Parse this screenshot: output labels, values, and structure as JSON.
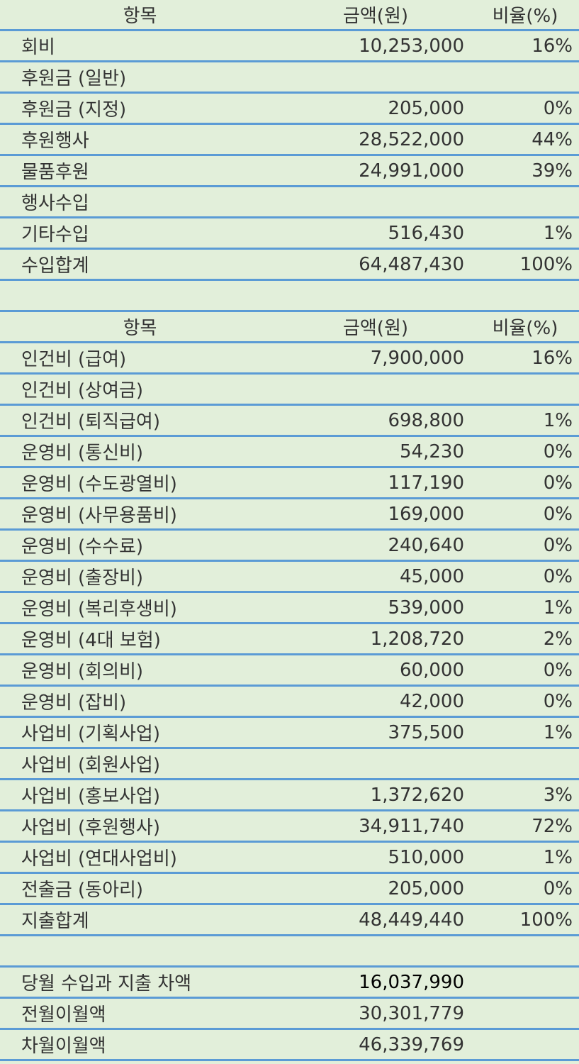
{
  "income": {
    "columns": [
      "항목",
      "금액(원)",
      "비율(%)"
    ],
    "rows": [
      [
        "회비",
        "10,253,000",
        "16%"
      ],
      [
        "후원금 (일반)"
      ],
      [
        "후원금 (지정)",
        "205,000",
        "0%"
      ],
      [
        "후원행사",
        "28,522,000",
        "44%"
      ],
      [
        "물품후원",
        "24,991,000",
        "39%"
      ],
      [
        "행사수입"
      ],
      [
        "기타수입",
        "516,430",
        "1%"
      ],
      [
        "수입합계",
        "64,487,430",
        "100%"
      ]
    ]
  },
  "expense": {
    "columns": [
      "항목",
      "금액(원)",
      "비율(%)"
    ],
    "rows": [
      [
        "인건비 (급여)",
        "7,900,000",
        "16%"
      ],
      [
        "인건비 (상여금)"
      ],
      [
        "인건비 (퇴직급여)",
        "698,800",
        "1%"
      ],
      [
        "운영비 (통신비)",
        "54,230",
        "0%"
      ],
      [
        "운영비 (수도광열비)",
        "117,190",
        "0%"
      ],
      [
        "운영비 (사무용품비)",
        "169,000",
        "0%"
      ],
      [
        "운영비 (수수료)",
        "240,640",
        "0%"
      ],
      [
        "운영비 (출장비)",
        "45,000",
        "0%"
      ],
      [
        "운영비 (복리후생비)",
        "539,000",
        "1%"
      ],
      [
        "운영비 (4대 보험)",
        "1,208,720",
        "2%"
      ],
      [
        "운영비 (회의비)",
        "60,000",
        "0%"
      ],
      [
        "운영비 (잡비)",
        "42,000",
        "0%"
      ],
      [
        "사업비 (기획사업)",
        "375,500",
        "1%"
      ],
      [
        "사업비 (회원사업)"
      ],
      [
        "사업비 (홍보사업)",
        "1,372,620",
        "3%"
      ],
      [
        "사업비 (후원행사)",
        "34,911,740",
        "72%"
      ],
      [
        "사업비 (연대사업비)",
        "510,000",
        "1%"
      ],
      [
        "전출금 (동아리)",
        "205,000",
        "0%"
      ],
      [
        "지출합계",
        "48,449,440",
        "100%"
      ]
    ]
  },
  "balance": {
    "rows": [
      [
        "당월 수입과 지출 차액",
        "16,037,990"
      ],
      [
        "전월이월액",
        "30,301,779"
      ],
      [
        "차월이월액",
        "46,339,769"
      ]
    ]
  }
}
